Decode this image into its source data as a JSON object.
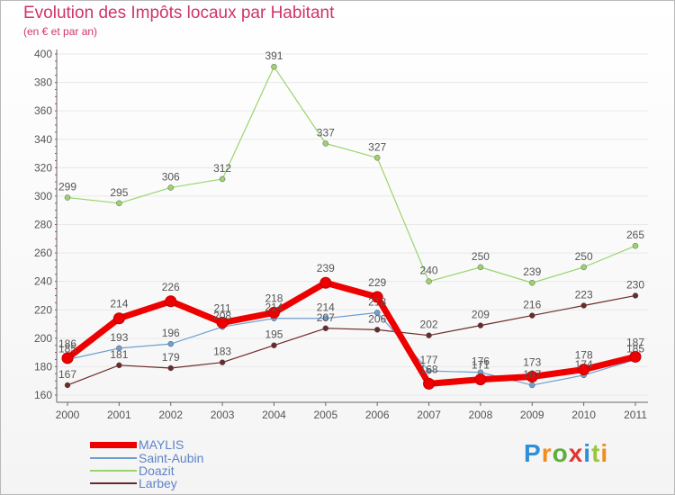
{
  "title": "Evolution des Impôts locaux par Habitant",
  "subtitle": "(en € et par an)",
  "brand": "Proxiti",
  "colors": {
    "title": "#d0336b",
    "legend_text": "#5f83c6",
    "axis": "#666666",
    "grid": "#e8e8e8"
  },
  "chart_data": {
    "type": "line",
    "title": "Evolution des Impôts locaux par Habitant",
    "subtitle": "(en € et par an)",
    "xlabel": "",
    "ylabel": "",
    "x": [
      "2000",
      "2001",
      "2002",
      "2003",
      "2004",
      "2005",
      "2006",
      "2007",
      "2008",
      "2009",
      "2010",
      "2011"
    ],
    "ylim": [
      160,
      400
    ],
    "yticks": [
      160,
      180,
      200,
      220,
      240,
      260,
      280,
      300,
      320,
      340,
      360,
      380,
      400
    ],
    "legend_position": "bottom-left",
    "series": [
      {
        "name": "Larbey",
        "color": "#6b2a2a",
        "width": 1.2,
        "values": [
          167,
          181,
          179,
          183,
          195,
          207,
          206,
          202,
          209,
          216,
          223,
          230
        ],
        "labels": [
          "167",
          "181",
          "179",
          "183",
          "195",
          "207",
          "206",
          "202",
          "209",
          "216",
          "223",
          "230"
        ]
      },
      {
        "name": "Doazit",
        "color": "#9bd46c",
        "width": 1.2,
        "values": [
          299,
          295,
          306,
          312,
          391,
          337,
          327,
          240,
          250,
          239,
          250,
          265
        ],
        "labels": [
          "299",
          "295",
          "306",
          "312",
          "391",
          "337",
          "327",
          "240",
          "250",
          "239",
          "250",
          "265"
        ]
      },
      {
        "name": "Saint-Aubin",
        "color": "#6e9fd0",
        "width": 1.2,
        "values": [
          185,
          193,
          196,
          208,
          214,
          214,
          218,
          177,
          176,
          167,
          174,
          185
        ],
        "labels": [
          "185",
          "193",
          "196",
          "208",
          "214",
          "214",
          "218",
          "177",
          "176",
          "167",
          "174",
          "185"
        ]
      },
      {
        "name": "MAYLIS",
        "color": "#ee0000",
        "width": 7,
        "values": [
          186,
          214,
          226,
          211,
          218,
          239,
          229,
          168,
          171,
          173,
          178,
          187
        ],
        "labels": [
          "186",
          "214",
          "226",
          "211",
          "218",
          "239",
          "229",
          "168",
          "171",
          "173",
          "178",
          "187"
        ]
      }
    ],
    "legend": [
      "MAYLIS",
      "Saint-Aubin",
      "Doazit",
      "Larbey"
    ]
  }
}
